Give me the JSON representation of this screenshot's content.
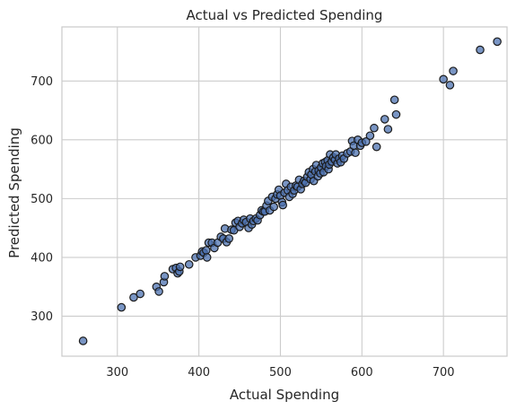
{
  "chart_data": {
    "type": "scatter",
    "title": "Actual vs Predicted Spending",
    "xlabel": "Actual Spending",
    "ylabel": "Predicted Spending",
    "xlim": [
      232,
      778
    ],
    "ylim": [
      232,
      792
    ],
    "x_ticks": [
      300,
      400,
      500,
      600,
      700
    ],
    "y_ticks": [
      300,
      400,
      500,
      600,
      700
    ],
    "grid": true,
    "legend": "none",
    "point_color": "#4c72b0",
    "edge_color": "#1a1a1a",
    "points": [
      [
        258,
        258
      ],
      [
        305,
        315
      ],
      [
        320,
        332
      ],
      [
        328,
        338
      ],
      [
        348,
        350
      ],
      [
        351,
        342
      ],
      [
        357,
        358
      ],
      [
        358,
        368
      ],
      [
        368,
        380
      ],
      [
        372,
        382
      ],
      [
        374,
        373
      ],
      [
        376,
        376
      ],
      [
        377,
        384
      ],
      [
        388,
        388
      ],
      [
        396,
        400
      ],
      [
        402,
        403
      ],
      [
        404,
        410
      ],
      [
        406,
        408
      ],
      [
        409,
        412
      ],
      [
        410,
        400
      ],
      [
        412,
        425
      ],
      [
        416,
        425
      ],
      [
        419,
        416
      ],
      [
        423,
        425
      ],
      [
        427,
        435
      ],
      [
        430,
        432
      ],
      [
        432,
        449
      ],
      [
        434,
        426
      ],
      [
        437,
        432
      ],
      [
        440,
        447
      ],
      [
        443,
        446
      ],
      [
        445,
        459
      ],
      [
        448,
        462
      ],
      [
        450,
        452
      ],
      [
        453,
        458
      ],
      [
        455,
        464
      ],
      [
        458,
        460
      ],
      [
        461,
        450
      ],
      [
        463,
        466
      ],
      [
        465,
        456
      ],
      [
        467,
        462
      ],
      [
        470,
        466
      ],
      [
        472,
        463
      ],
      [
        475,
        472
      ],
      [
        477,
        480
      ],
      [
        479,
        478
      ],
      [
        481,
        478
      ],
      [
        483,
        488
      ],
      [
        485,
        496
      ],
      [
        487,
        480
      ],
      [
        490,
        503
      ],
      [
        492,
        486
      ],
      [
        494,
        500
      ],
      [
        496,
        507
      ],
      [
        498,
        515
      ],
      [
        500,
        505
      ],
      [
        502,
        494
      ],
      [
        503,
        489
      ],
      [
        505,
        510
      ],
      [
        507,
        525
      ],
      [
        509,
        514
      ],
      [
        511,
        503
      ],
      [
        513,
        520
      ],
      [
        515,
        508
      ],
      [
        517,
        514
      ],
      [
        519,
        522
      ],
      [
        521,
        520
      ],
      [
        523,
        532
      ],
      [
        525,
        516
      ],
      [
        527,
        525
      ],
      [
        529,
        530
      ],
      [
        531,
        527
      ],
      [
        533,
        537
      ],
      [
        535,
        545
      ],
      [
        537,
        533
      ],
      [
        538,
        541
      ],
      [
        540,
        550
      ],
      [
        541,
        530
      ],
      [
        543,
        546
      ],
      [
        544,
        557
      ],
      [
        546,
        538
      ],
      [
        547,
        548
      ],
      [
        549,
        543
      ],
      [
        550,
        553
      ],
      [
        552,
        560
      ],
      [
        553,
        545
      ],
      [
        555,
        562
      ],
      [
        556,
        555
      ],
      [
        558,
        565
      ],
      [
        559,
        550
      ],
      [
        560,
        558
      ],
      [
        561,
        575
      ],
      [
        563,
        563
      ],
      [
        565,
        570
      ],
      [
        567,
        566
      ],
      [
        568,
        575
      ],
      [
        570,
        560
      ],
      [
        572,
        568
      ],
      [
        574,
        562
      ],
      [
        576,
        573
      ],
      [
        578,
        568
      ],
      [
        582,
        577
      ],
      [
        586,
        580
      ],
      [
        588,
        598
      ],
      [
        590,
        590
      ],
      [
        592,
        578
      ],
      [
        595,
        600
      ],
      [
        598,
        590
      ],
      [
        600,
        595
      ],
      [
        605,
        597
      ],
      [
        610,
        607
      ],
      [
        615,
        620
      ],
      [
        618,
        588
      ],
      [
        628,
        635
      ],
      [
        632,
        618
      ],
      [
        640,
        668
      ],
      [
        642,
        643
      ],
      [
        700,
        703
      ],
      [
        708,
        693
      ],
      [
        712,
        717
      ],
      [
        745,
        753
      ],
      [
        766,
        767
      ]
    ]
  }
}
